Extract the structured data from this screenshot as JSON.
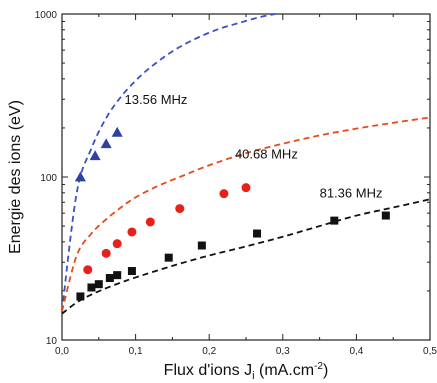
{
  "chart_data": {
    "type": "scatter",
    "xlabel": "Flux d'ions J",
    "xlabel_sub": "i",
    "xlabel_unit": " (mA.cm",
    "xlabel_sup": "-2",
    "xlabel_end": ")",
    "ylabel": "Energie des ions (eV)",
    "xlim": [
      0,
      0.5
    ],
    "ylim": [
      10,
      1000
    ],
    "yscale": "log",
    "x_ticks": [
      0,
      0.1,
      0.2,
      0.3,
      0.4,
      0.5
    ],
    "x_tick_labels": [
      "0,0",
      "0,1",
      "0,2",
      "0,3",
      "0,4",
      "0,5"
    ],
    "y_ticks": [
      10,
      100,
      1000
    ],
    "y_tick_labels": [
      "10",
      "100",
      "1000"
    ],
    "grid": false,
    "series": [
      {
        "name": "13.56 MHz",
        "marker": "triangle",
        "color": "#2f3fa8",
        "points": [
          [
            0.025,
            100
          ],
          [
            0.045,
            135
          ],
          [
            0.06,
            160
          ],
          [
            0.075,
            188
          ]
        ]
      },
      {
        "name": "40.68 MHz",
        "marker": "circle",
        "color": "#e8201a",
        "points": [
          [
            0.035,
            27
          ],
          [
            0.06,
            34
          ],
          [
            0.075,
            39
          ],
          [
            0.095,
            46
          ],
          [
            0.12,
            53
          ],
          [
            0.16,
            64
          ],
          [
            0.22,
            79
          ],
          [
            0.25,
            86
          ]
        ]
      },
      {
        "name": "81.36 MHz",
        "marker": "square",
        "color": "#111111",
        "points": [
          [
            0.025,
            18.5
          ],
          [
            0.04,
            21
          ],
          [
            0.05,
            22
          ],
          [
            0.065,
            24
          ],
          [
            0.075,
            25
          ],
          [
            0.095,
            26.5
          ],
          [
            0.145,
            32
          ],
          [
            0.19,
            38
          ],
          [
            0.265,
            45
          ],
          [
            0.37,
            54
          ],
          [
            0.44,
            58
          ]
        ]
      }
    ],
    "fit_curves": [
      {
        "series": "13.56 MHz",
        "color": "#3a4fc8",
        "style": "dashed",
        "points": [
          [
            0,
            15
          ],
          [
            0.02,
            80
          ],
          [
            0.04,
            150
          ],
          [
            0.06,
            230
          ],
          [
            0.08,
            310
          ],
          [
            0.1,
            390
          ],
          [
            0.12,
            470
          ],
          [
            0.15,
            590
          ],
          [
            0.18,
            700
          ],
          [
            0.21,
            800
          ],
          [
            0.24,
            880
          ],
          [
            0.27,
            960
          ],
          [
            0.29,
            1000
          ]
        ]
      },
      {
        "series": "40.68 MHz",
        "color": "#e84a1a",
        "style": "dashed",
        "points": [
          [
            0,
            15
          ],
          [
            0.02,
            33
          ],
          [
            0.04,
            45
          ],
          [
            0.06,
            55
          ],
          [
            0.08,
            65
          ],
          [
            0.1,
            75
          ],
          [
            0.13,
            88
          ],
          [
            0.16,
            100
          ],
          [
            0.2,
            118
          ],
          [
            0.25,
            140
          ],
          [
            0.3,
            160
          ],
          [
            0.35,
            180
          ],
          [
            0.4,
            198
          ],
          [
            0.45,
            215
          ],
          [
            0.5,
            232
          ]
        ]
      },
      {
        "series": "81.36 MHz",
        "color": "#111111",
        "style": "dashed",
        "points": [
          [
            0,
            14.5
          ],
          [
            0.02,
            17
          ],
          [
            0.04,
            19
          ],
          [
            0.06,
            20.8
          ],
          [
            0.08,
            22.5
          ],
          [
            0.1,
            24.2
          ],
          [
            0.15,
            28.5
          ],
          [
            0.2,
            33
          ],
          [
            0.25,
            37.5
          ],
          [
            0.3,
            43
          ],
          [
            0.35,
            50
          ],
          [
            0.4,
            58
          ],
          [
            0.45,
            65
          ],
          [
            0.5,
            73
          ]
        ]
      }
    ],
    "annotations": [
      {
        "text": "13.56 MHz",
        "x": 0.085,
        "y": 280,
        "series": "13.56 MHz"
      },
      {
        "text": "40.68 MHz",
        "x": 0.235,
        "y": 130,
        "series": "40.68 MHz"
      },
      {
        "text": "81.36 MHz",
        "x": 0.35,
        "y": 75,
        "series": "81.36 MHz"
      }
    ]
  }
}
